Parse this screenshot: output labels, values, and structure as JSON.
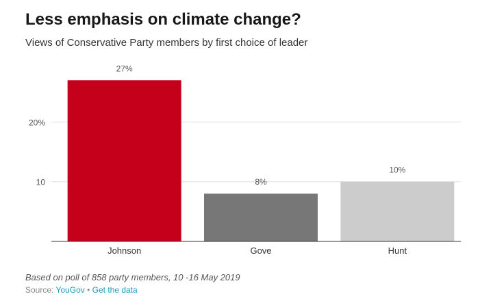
{
  "title": "Less emphasis on climate change?",
  "subtitle": "Views of Conservative Party members by first choice of leader",
  "footnote": "Based on poll of 858 party members, 10 -16 May 2019",
  "source": {
    "prefix": "Source:",
    "link_label": "YouGov",
    "separator": "•",
    "data_link_label": "Get the data",
    "link_color": "#1b9bc0"
  },
  "chart_data": {
    "type": "bar",
    "categories": [
      "Johnson",
      "Gove",
      "Hunt"
    ],
    "values": [
      27,
      8,
      10
    ],
    "data_labels": [
      "27%",
      "8%",
      "10%"
    ],
    "colors": [
      "#c4001a",
      "#777777",
      "#cccccc"
    ],
    "yticks": [
      10,
      20
    ],
    "ytick_labels": [
      "10",
      "20%"
    ],
    "ylim": [
      0,
      30
    ],
    "grid": true,
    "xlabel": "",
    "ylabel": ""
  }
}
